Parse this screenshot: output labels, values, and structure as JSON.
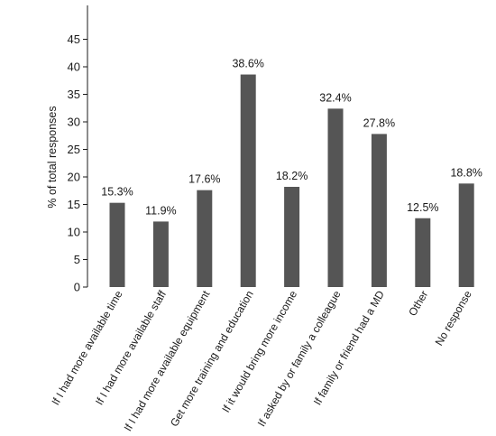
{
  "chart_data": {
    "type": "bar",
    "ylabel": "% of total responses",
    "ylim": [
      0,
      50
    ],
    "yticks": [
      0,
      5,
      10,
      15,
      20,
      25,
      30,
      35,
      40,
      45
    ],
    "grid": false,
    "bar_color": "#555555",
    "categories": [
      "If I had more available time",
      "If I had more available staff",
      "If I had more available equipment",
      "Get more training and education",
      "If it would bring more income",
      "If asked by or family a colleague",
      "If family or friend had a MD",
      "Other",
      "No response"
    ],
    "values": [
      15.3,
      11.9,
      17.6,
      38.6,
      18.2,
      32.4,
      27.8,
      12.5,
      18.8
    ],
    "data_labels": [
      "15.3%",
      "11.9%",
      "17.6%",
      "38.6%",
      "18.2%",
      "32.4%",
      "27.8%",
      "12.5%",
      "18.8%"
    ]
  }
}
